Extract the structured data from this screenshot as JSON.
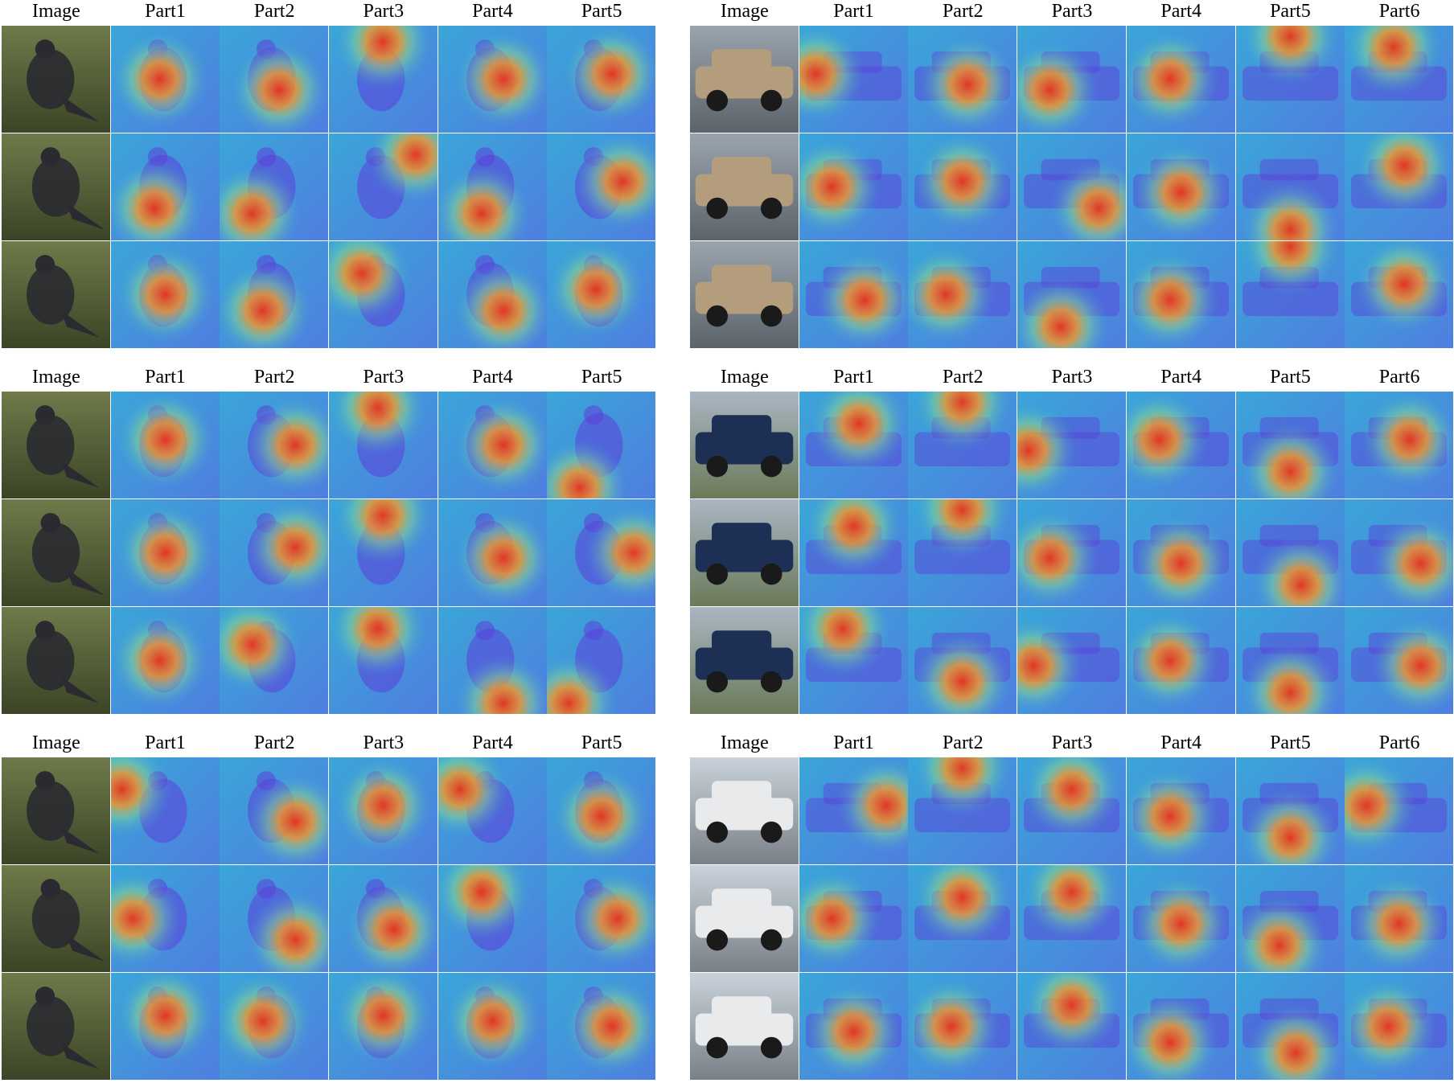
{
  "panels": [
    {
      "id": "birds-1",
      "headers": [
        "Image",
        "Part1",
        "Part2",
        "Part3",
        "Part4",
        "Part5"
      ],
      "rows": 3,
      "image_subject": "bird",
      "heat": [
        [
          [
            0.45,
            0.5
          ],
          [
            0.55,
            0.6
          ],
          [
            0.5,
            0.15
          ],
          [
            0.6,
            0.5
          ],
          [
            0.6,
            0.45
          ]
        ],
        [
          [
            0.4,
            0.7
          ],
          [
            0.3,
            0.75
          ],
          [
            0.8,
            0.2
          ],
          [
            0.4,
            0.75
          ],
          [
            0.7,
            0.45
          ]
        ],
        [
          [
            0.5,
            0.5
          ],
          [
            0.4,
            0.65
          ],
          [
            0.3,
            0.3
          ],
          [
            0.6,
            0.65
          ],
          [
            0.45,
            0.45
          ]
        ]
      ]
    },
    {
      "id": "cars-1",
      "headers": [
        "Image",
        "Part1",
        "Part2",
        "Part3",
        "Part4",
        "Part5",
        "Part6"
      ],
      "rows": 3,
      "image_subject": "car",
      "heat": [
        [
          [
            0.15,
            0.45
          ],
          [
            0.55,
            0.55
          ],
          [
            0.3,
            0.6
          ],
          [
            0.4,
            0.5
          ],
          [
            0.5,
            0.1
          ],
          [
            0.45,
            0.2
          ]
        ],
        [
          [
            0.3,
            0.5
          ],
          [
            0.5,
            0.45
          ],
          [
            0.75,
            0.7
          ],
          [
            0.5,
            0.55
          ],
          [
            0.5,
            0.9
          ],
          [
            0.55,
            0.3
          ]
        ],
        [
          [
            0.6,
            0.55
          ],
          [
            0.35,
            0.5
          ],
          [
            0.4,
            0.8
          ],
          [
            0.4,
            0.55
          ],
          [
            0.5,
            0.05
          ],
          [
            0.55,
            0.4
          ]
        ]
      ]
    },
    {
      "id": "birds-2",
      "headers": [
        "Image",
        "Part1",
        "Part2",
        "Part3",
        "Part4",
        "Part5"
      ],
      "rows": 3,
      "image_subject": "bird",
      "heat": [
        [
          [
            0.5,
            0.45
          ],
          [
            0.7,
            0.5
          ],
          [
            0.45,
            0.15
          ],
          [
            0.6,
            0.5
          ],
          [
            0.3,
            0.9
          ]
        ],
        [
          [
            0.5,
            0.5
          ],
          [
            0.7,
            0.45
          ],
          [
            0.5,
            0.15
          ],
          [
            0.6,
            0.55
          ],
          [
            0.8,
            0.5
          ]
        ],
        [
          [
            0.45,
            0.5
          ],
          [
            0.3,
            0.35
          ],
          [
            0.45,
            0.2
          ],
          [
            0.6,
            0.9
          ],
          [
            0.2,
            0.9
          ]
        ]
      ]
    },
    {
      "id": "cars-2",
      "headers": [
        "Image",
        "Part1",
        "Part2",
        "Part3",
        "Part4",
        "Part5",
        "Part6"
      ],
      "rows": 3,
      "image_subject": "truck",
      "heat": [
        [
          [
            0.55,
            0.3
          ],
          [
            0.5,
            0.1
          ],
          [
            0.1,
            0.55
          ],
          [
            0.3,
            0.45
          ],
          [
            0.5,
            0.75
          ],
          [
            0.6,
            0.45
          ]
        ],
        [
          [
            0.5,
            0.25
          ],
          [
            0.5,
            0.1
          ],
          [
            0.3,
            0.55
          ],
          [
            0.5,
            0.6
          ],
          [
            0.6,
            0.8
          ],
          [
            0.7,
            0.6
          ]
        ],
        [
          [
            0.4,
            0.2
          ],
          [
            0.5,
            0.7
          ],
          [
            0.15,
            0.55
          ],
          [
            0.4,
            0.5
          ],
          [
            0.5,
            0.8
          ],
          [
            0.7,
            0.55
          ]
        ]
      ]
    },
    {
      "id": "birds-3",
      "headers": [
        "Image",
        "Part1",
        "Part2",
        "Part3",
        "Part4",
        "Part5"
      ],
      "rows": 3,
      "image_subject": "bird",
      "heat": [
        [
          [
            0.1,
            0.3
          ],
          [
            0.7,
            0.6
          ],
          [
            0.5,
            0.45
          ],
          [
            0.2,
            0.3
          ],
          [
            0.5,
            0.55
          ]
        ],
        [
          [
            0.2,
            0.5
          ],
          [
            0.7,
            0.7
          ],
          [
            0.6,
            0.6
          ],
          [
            0.4,
            0.25
          ],
          [
            0.65,
            0.5
          ]
        ],
        [
          [
            0.5,
            0.4
          ],
          [
            0.4,
            0.45
          ],
          [
            0.5,
            0.4
          ],
          [
            0.5,
            0.45
          ],
          [
            0.6,
            0.5
          ]
        ]
      ]
    },
    {
      "id": "cars-3",
      "headers": [
        "Image",
        "Part1",
        "Part2",
        "Part3",
        "Part4",
        "Part5",
        "Part6"
      ],
      "rows": 3,
      "image_subject": "suv",
      "heat": [
        [
          [
            0.8,
            0.45
          ],
          [
            0.5,
            0.1
          ],
          [
            0.5,
            0.3
          ],
          [
            0.4,
            0.55
          ],
          [
            0.5,
            0.75
          ],
          [
            0.2,
            0.45
          ]
        ],
        [
          [
            0.3,
            0.5
          ],
          [
            0.5,
            0.3
          ],
          [
            0.5,
            0.25
          ],
          [
            0.5,
            0.55
          ],
          [
            0.4,
            0.75
          ],
          [
            0.5,
            0.55
          ]
        ],
        [
          [
            0.5,
            0.55
          ],
          [
            0.4,
            0.5
          ],
          [
            0.5,
            0.3
          ],
          [
            0.4,
            0.65
          ],
          [
            0.55,
            0.75
          ],
          [
            0.4,
            0.5
          ]
        ]
      ]
    }
  ]
}
